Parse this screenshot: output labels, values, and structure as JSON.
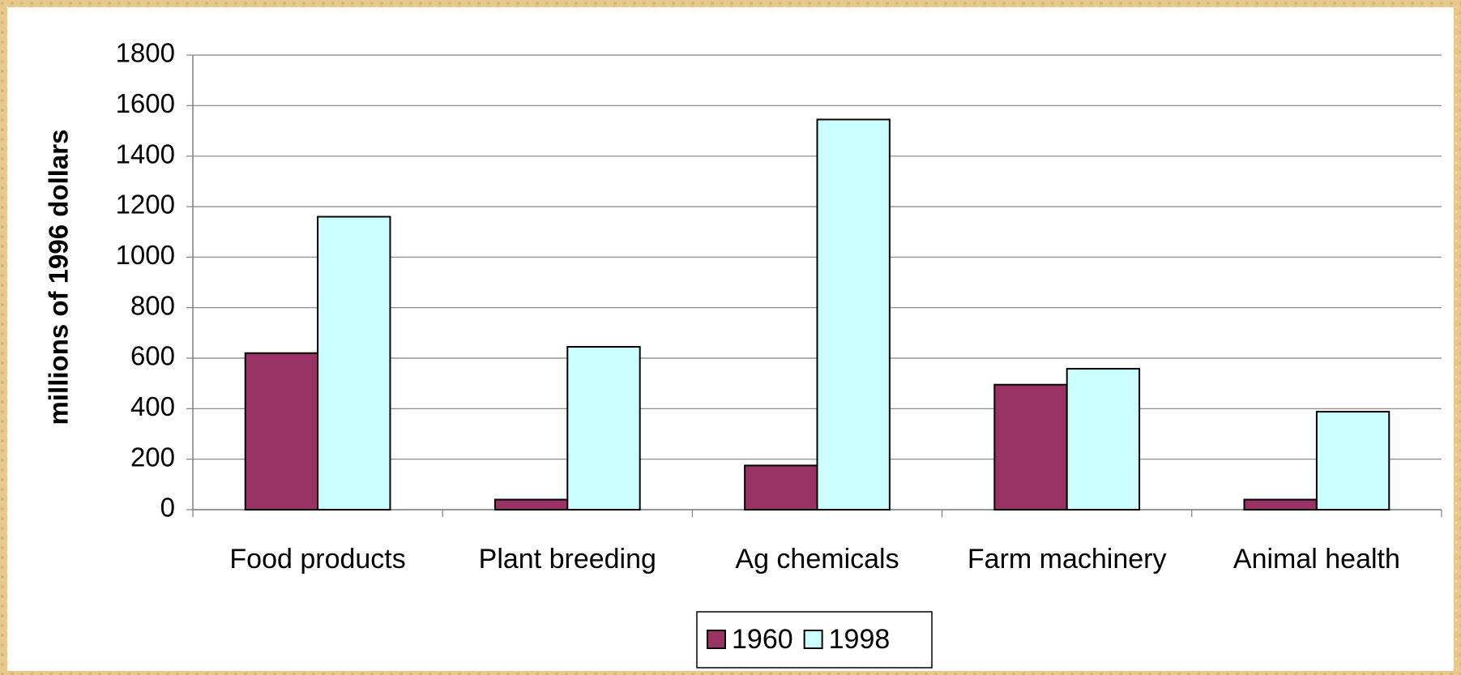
{
  "chart_data": {
    "type": "bar",
    "ylabel": "millions of 1996 dollars",
    "categories": [
      "Food products",
      "Plant breeding",
      "Ag chemicals",
      "Farm machinery",
      "Animal health"
    ],
    "series": [
      {
        "name": "1960",
        "color": "#993366",
        "values": [
          620,
          40,
          175,
          495,
          40
        ]
      },
      {
        "name": "1998",
        "color": "#ccffff",
        "values": [
          1160,
          645,
          1545,
          558,
          388
        ]
      }
    ],
    "ylim": [
      0,
      1800
    ],
    "yticks": [
      0,
      200,
      400,
      600,
      800,
      1000,
      1200,
      1400,
      1600,
      1800
    ],
    "grid": true,
    "legend": "bottom"
  }
}
